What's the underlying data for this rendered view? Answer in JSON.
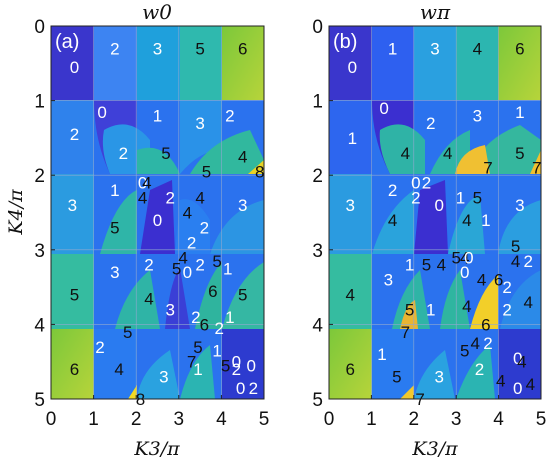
{
  "chart_data": [
    {
      "type": "heatmap",
      "panel_label": "(a)",
      "title": "w0",
      "xlabel": "K3/π",
      "ylabel": "K4/π",
      "xlim": [
        0,
        5
      ],
      "ylim": [
        5,
        0
      ],
      "xticks": [
        "0",
        "1",
        "2",
        "3",
        "4",
        "5"
      ],
      "yticks": [
        "0",
        "1",
        "2",
        "3",
        "4",
        "5"
      ],
      "colormap": "parula",
      "value_range": [
        0,
        8
      ],
      "grid_lines": [
        1,
        2,
        3,
        4
      ],
      "labels": [
        {
          "x": 0.55,
          "y": 0.55,
          "value": "0"
        },
        {
          "x": 1.5,
          "y": 0.3,
          "value": "2"
        },
        {
          "x": 2.5,
          "y": 0.3,
          "value": "3"
        },
        {
          "x": 3.5,
          "y": 0.3,
          "value": "5"
        },
        {
          "x": 4.5,
          "y": 0.3,
          "value": "6"
        },
        {
          "x": 0.55,
          "y": 1.45,
          "value": "2"
        },
        {
          "x": 1.2,
          "y": 1.15,
          "value": "0"
        },
        {
          "x": 1.7,
          "y": 1.7,
          "value": "2"
        },
        {
          "x": 2.5,
          "y": 1.2,
          "value": "1"
        },
        {
          "x": 3.5,
          "y": 1.3,
          "value": "3"
        },
        {
          "x": 4.2,
          "y": 1.2,
          "value": "2"
        },
        {
          "x": 2.7,
          "y": 1.7,
          "value": "5"
        },
        {
          "x": 4.5,
          "y": 1.75,
          "value": "4"
        },
        {
          "x": 3.65,
          "y": 1.95,
          "value": "5"
        },
        {
          "x": 4.9,
          "y": 1.95,
          "value": "8"
        },
        {
          "x": 0.5,
          "y": 2.4,
          "value": "3"
        },
        {
          "x": 1.5,
          "y": 2.2,
          "value": "1"
        },
        {
          "x": 1.5,
          "y": 2.7,
          "value": "5"
        },
        {
          "x": 2.15,
          "y": 2.1,
          "value": "0"
        },
        {
          "x": 2.25,
          "y": 2.1,
          "value": "4"
        },
        {
          "x": 2.15,
          "y": 2.3,
          "value": "4"
        },
        {
          "x": 2.8,
          "y": 2.3,
          "value": "2"
        },
        {
          "x": 3.5,
          "y": 2.3,
          "value": "4"
        },
        {
          "x": 2.5,
          "y": 2.6,
          "value": "0"
        },
        {
          "x": 3.2,
          "y": 2.5,
          "value": "4"
        },
        {
          "x": 3.6,
          "y": 2.7,
          "value": "2"
        },
        {
          "x": 4.5,
          "y": 2.4,
          "value": "3"
        },
        {
          "x": 0.55,
          "y": 3.6,
          "value": "5"
        },
        {
          "x": 1.5,
          "y": 3.3,
          "value": "3"
        },
        {
          "x": 2.3,
          "y": 3.2,
          "value": "2"
        },
        {
          "x": 2.3,
          "y": 3.65,
          "value": "4"
        },
        {
          "x": 2.95,
          "y": 3.25,
          "value": "5"
        },
        {
          "x": 3.3,
          "y": 2.9,
          "value": "2"
        },
        {
          "x": 3.1,
          "y": 3.1,
          "value": "4"
        },
        {
          "x": 3.2,
          "y": 3.3,
          "value": "0"
        },
        {
          "x": 3.5,
          "y": 3.2,
          "value": "2"
        },
        {
          "x": 3.9,
          "y": 3.15,
          "value": "5"
        },
        {
          "x": 4.15,
          "y": 3.25,
          "value": "1"
        },
        {
          "x": 3.8,
          "y": 3.55,
          "value": "6"
        },
        {
          "x": 2.8,
          "y": 3.8,
          "value": "3"
        },
        {
          "x": 3.4,
          "y": 3.9,
          "value": "2"
        },
        {
          "x": 4.5,
          "y": 3.6,
          "value": "5"
        },
        {
          "x": 4.2,
          "y": 3.9,
          "value": "1"
        },
        {
          "x": 1.8,
          "y": 4.1,
          "value": "5"
        },
        {
          "x": 3.6,
          "y": 4.0,
          "value": "6"
        },
        {
          "x": 3.95,
          "y": 4.05,
          "value": "2"
        },
        {
          "x": 3.45,
          "y": 4.3,
          "value": "5"
        },
        {
          "x": 3.9,
          "y": 4.35,
          "value": "1"
        },
        {
          "x": 3.3,
          "y": 4.5,
          "value": "7"
        },
        {
          "x": 0.55,
          "y": 4.6,
          "value": "6"
        },
        {
          "x": 1.15,
          "y": 4.3,
          "value": "2"
        },
        {
          "x": 1.6,
          "y": 4.6,
          "value": "4"
        },
        {
          "x": 2.65,
          "y": 4.7,
          "value": "3"
        },
        {
          "x": 3.45,
          "y": 4.6,
          "value": "1"
        },
        {
          "x": 4.1,
          "y": 4.55,
          "value": "5"
        },
        {
          "x": 4.35,
          "y": 4.5,
          "value": "0"
        },
        {
          "x": 4.35,
          "y": 4.6,
          "value": "2"
        },
        {
          "x": 4.7,
          "y": 4.55,
          "value": "0"
        },
        {
          "x": 4.45,
          "y": 4.85,
          "value": "0"
        },
        {
          "x": 4.75,
          "y": 4.85,
          "value": "2"
        },
        {
          "x": 2.1,
          "y": 5.0,
          "value": "8"
        }
      ]
    },
    {
      "type": "heatmap",
      "panel_label": "(b)",
      "title": "wπ",
      "xlabel": "K3/π",
      "ylabel": "",
      "xlim": [
        0,
        5
      ],
      "ylim": [
        5,
        0
      ],
      "xticks": [
        "0",
        "1",
        "2",
        "3",
        "4",
        "5"
      ],
      "yticks": [
        "0",
        "1",
        "2",
        "3",
        "4",
        "5"
      ],
      "colormap": "parula",
      "value_range": [
        0,
        8
      ],
      "grid_lines": [
        1,
        2,
        3,
        4
      ],
      "labels": [
        {
          "x": 0.55,
          "y": 0.55,
          "value": "0"
        },
        {
          "x": 1.5,
          "y": 0.3,
          "value": "1"
        },
        {
          "x": 2.5,
          "y": 0.3,
          "value": "3"
        },
        {
          "x": 3.5,
          "y": 0.3,
          "value": "4"
        },
        {
          "x": 4.5,
          "y": 0.3,
          "value": "6"
        },
        {
          "x": 0.55,
          "y": 1.5,
          "value": "1"
        },
        {
          "x": 1.3,
          "y": 1.1,
          "value": "0"
        },
        {
          "x": 2.4,
          "y": 1.3,
          "value": "2"
        },
        {
          "x": 3.5,
          "y": 1.2,
          "value": "3"
        },
        {
          "x": 4.5,
          "y": 1.15,
          "value": "1"
        },
        {
          "x": 1.8,
          "y": 1.7,
          "value": "4"
        },
        {
          "x": 2.8,
          "y": 1.7,
          "value": "4"
        },
        {
          "x": 4.5,
          "y": 1.7,
          "value": "5"
        },
        {
          "x": 3.75,
          "y": 1.9,
          "value": "7"
        },
        {
          "x": 4.9,
          "y": 1.9,
          "value": "7"
        },
        {
          "x": 0.5,
          "y": 2.4,
          "value": "3"
        },
        {
          "x": 1.5,
          "y": 2.2,
          "value": "2"
        },
        {
          "x": 1.5,
          "y": 2.6,
          "value": "4"
        },
        {
          "x": 2.05,
          "y": 2.1,
          "value": "0"
        },
        {
          "x": 2.3,
          "y": 2.1,
          "value": "2"
        },
        {
          "x": 2.05,
          "y": 2.3,
          "value": "2"
        },
        {
          "x": 2.6,
          "y": 2.4,
          "value": "0"
        },
        {
          "x": 3.1,
          "y": 2.3,
          "value": "1"
        },
        {
          "x": 3.5,
          "y": 2.3,
          "value": "5"
        },
        {
          "x": 3.25,
          "y": 2.6,
          "value": "4"
        },
        {
          "x": 3.7,
          "y": 2.6,
          "value": "1"
        },
        {
          "x": 4.5,
          "y": 2.4,
          "value": "3"
        },
        {
          "x": 0.5,
          "y": 3.6,
          "value": "4"
        },
        {
          "x": 1.4,
          "y": 3.4,
          "value": "3"
        },
        {
          "x": 1.9,
          "y": 3.2,
          "value": "1"
        },
        {
          "x": 2.3,
          "y": 3.2,
          "value": "5"
        },
        {
          "x": 2.65,
          "y": 3.2,
          "value": "4"
        },
        {
          "x": 3.0,
          "y": 3.1,
          "value": "5"
        },
        {
          "x": 3.2,
          "y": 3.1,
          "value": "4"
        },
        {
          "x": 3.3,
          "y": 3.1,
          "value": "0"
        },
        {
          "x": 3.2,
          "y": 3.3,
          "value": "0"
        },
        {
          "x": 3.6,
          "y": 3.4,
          "value": "4"
        },
        {
          "x": 4.0,
          "y": 3.4,
          "value": "6"
        },
        {
          "x": 4.4,
          "y": 3.15,
          "value": "4"
        },
        {
          "x": 4.4,
          "y": 2.95,
          "value": "5"
        },
        {
          "x": 4.7,
          "y": 3.15,
          "value": "2"
        },
        {
          "x": 1.9,
          "y": 3.8,
          "value": "5"
        },
        {
          "x": 2.4,
          "y": 3.8,
          "value": "1"
        },
        {
          "x": 3.25,
          "y": 3.75,
          "value": "4"
        },
        {
          "x": 4.2,
          "y": 3.5,
          "value": "2"
        },
        {
          "x": 4.7,
          "y": 3.7,
          "value": "4"
        },
        {
          "x": 4.2,
          "y": 3.8,
          "value": "2"
        },
        {
          "x": 1.8,
          "y": 4.1,
          "value": "7"
        },
        {
          "x": 3.7,
          "y": 4.0,
          "value": "6"
        },
        {
          "x": 3.45,
          "y": 4.25,
          "value": "4"
        },
        {
          "x": 3.75,
          "y": 4.25,
          "value": "2"
        },
        {
          "x": 3.2,
          "y": 4.35,
          "value": "5"
        },
        {
          "x": 0.5,
          "y": 4.6,
          "value": "6"
        },
        {
          "x": 1.25,
          "y": 4.4,
          "value": "1"
        },
        {
          "x": 1.6,
          "y": 4.7,
          "value": "5"
        },
        {
          "x": 2.6,
          "y": 4.7,
          "value": "3"
        },
        {
          "x": 3.55,
          "y": 4.6,
          "value": "2"
        },
        {
          "x": 4.05,
          "y": 4.75,
          "value": "4"
        },
        {
          "x": 4.45,
          "y": 4.45,
          "value": "0"
        },
        {
          "x": 4.55,
          "y": 4.5,
          "value": "4"
        },
        {
          "x": 4.45,
          "y": 4.85,
          "value": "0"
        },
        {
          "x": 4.75,
          "y": 4.8,
          "value": "4"
        },
        {
          "x": 2.15,
          "y": 5.0,
          "value": "7"
        }
      ]
    }
  ]
}
